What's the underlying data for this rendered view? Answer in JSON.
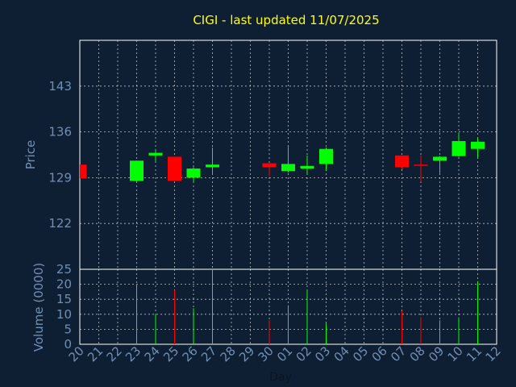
{
  "chart_data": {
    "type": "candlestick",
    "title": "CIGI - last updated 11/07/2025",
    "price_ylabel": "Price",
    "volume_ylabel": "Volume (0000)",
    "xlabel": "Day",
    "price_yticks": [
      122,
      129,
      136,
      143
    ],
    "price_ylim": [
      115,
      150
    ],
    "volume_yticks": [
      0,
      5,
      10,
      15,
      20,
      25
    ],
    "volume_ylim": [
      0,
      25
    ],
    "x_ticks": [
      "20",
      "21",
      "22",
      "23",
      "24",
      "25",
      "26",
      "27",
      "28",
      "29",
      "30",
      "01",
      "02",
      "03",
      "04",
      "05",
      "06",
      "07",
      "08",
      "09",
      "10",
      "11",
      "12"
    ],
    "colors": {
      "up": "#00ff00",
      "down": "#ff0000",
      "grid": "#ffffff",
      "axis_text": "#6f8fb5",
      "title": "#ffff00",
      "background": "#0f1f33"
    },
    "candles": [
      {
        "day": "20",
        "open": 131.0,
        "high": 131.0,
        "low": 128.9,
        "close": 128.9,
        "volume": 0
      },
      {
        "day": "23",
        "open": 128.5,
        "high": 131.6,
        "low": 128.2,
        "close": 131.6,
        "volume": 20
      },
      {
        "day": "24",
        "open": 132.4,
        "high": 133.4,
        "low": 131.5,
        "close": 132.8,
        "volume": 10
      },
      {
        "day": "25",
        "open": 132.2,
        "high": 132.2,
        "low": 128.5,
        "close": 128.5,
        "volume": 18
      },
      {
        "day": "26",
        "open": 129.0,
        "high": 130.6,
        "low": 128.3,
        "close": 130.4,
        "volume": 12
      },
      {
        "day": "27",
        "open": 130.6,
        "high": 133.6,
        "low": 129.6,
        "close": 131.0,
        "volume": 25
      },
      {
        "day": "30",
        "open": 131.2,
        "high": 131.2,
        "low": 129.2,
        "close": 130.6,
        "volume": 8
      },
      {
        "day": "01",
        "open": 130.0,
        "high": 133.7,
        "low": 129.8,
        "close": 131.1,
        "volume": 13
      },
      {
        "day": "02",
        "open": 130.4,
        "high": 132.4,
        "low": 129.5,
        "close": 130.8,
        "volume": 18
      },
      {
        "day": "03",
        "open": 131.1,
        "high": 133.6,
        "low": 130.1,
        "close": 133.4,
        "volume": 7
      },
      {
        "day": "07",
        "open": 132.4,
        "high": 132.4,
        "low": 130.4,
        "close": 130.6,
        "volume": 11
      },
      {
        "day": "08",
        "open": 131.0,
        "high": 132.4,
        "low": 128.4,
        "close": 130.9,
        "volume": 9
      },
      {
        "day": "09",
        "open": 131.6,
        "high": 132.3,
        "low": 129.7,
        "close": 132.2,
        "volume": 8
      },
      {
        "day": "10",
        "open": 132.3,
        "high": 135.9,
        "low": 132.2,
        "close": 134.6,
        "volume": 9
      },
      {
        "day": "11",
        "open": 133.4,
        "high": 135.1,
        "low": 132.0,
        "close": 134.5,
        "volume": 21
      }
    ]
  }
}
